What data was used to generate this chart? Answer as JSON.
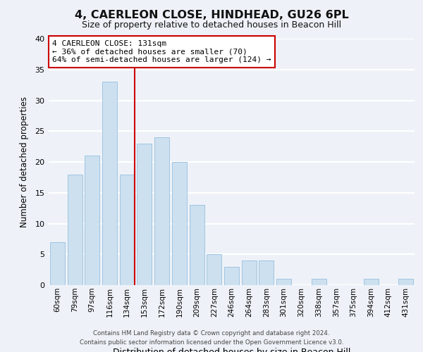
{
  "title": "4, CAERLEON CLOSE, HINDHEAD, GU26 6PL",
  "subtitle": "Size of property relative to detached houses in Beacon Hill",
  "xlabel": "Distribution of detached houses by size in Beacon Hill",
  "ylabel": "Number of detached properties",
  "bar_labels": [
    "60sqm",
    "79sqm",
    "97sqm",
    "116sqm",
    "134sqm",
    "153sqm",
    "172sqm",
    "190sqm",
    "209sqm",
    "227sqm",
    "246sqm",
    "264sqm",
    "283sqm",
    "301sqm",
    "320sqm",
    "338sqm",
    "357sqm",
    "375sqm",
    "394sqm",
    "412sqm",
    "431sqm"
  ],
  "bar_heights": [
    7,
    18,
    21,
    33,
    18,
    23,
    24,
    20,
    13,
    5,
    3,
    4,
    4,
    1,
    0,
    1,
    0,
    0,
    1,
    0,
    1
  ],
  "bar_color": "#cce0f0",
  "bar_edge_color": "#a0c4e0",
  "background_color": "#eef2f8",
  "grid_color": "#ffffff",
  "vline_x_index": 4,
  "vline_color": "#cc0000",
  "annotation_title": "4 CAERLEON CLOSE: 131sqm",
  "annotation_line1": "← 36% of detached houses are smaller (70)",
  "annotation_line2": "64% of semi-detached houses are larger (124) →",
  "annotation_box_color": "#ffffff",
  "annotation_box_edge": "#cc0000",
  "footer1": "Contains HM Land Registry data © Crown copyright and database right 2024.",
  "footer2": "Contains public sector information licensed under the Open Government Licence v3.0.",
  "ylim": [
    0,
    40
  ],
  "yticks": [
    0,
    5,
    10,
    15,
    20,
    25,
    30,
    35,
    40
  ]
}
